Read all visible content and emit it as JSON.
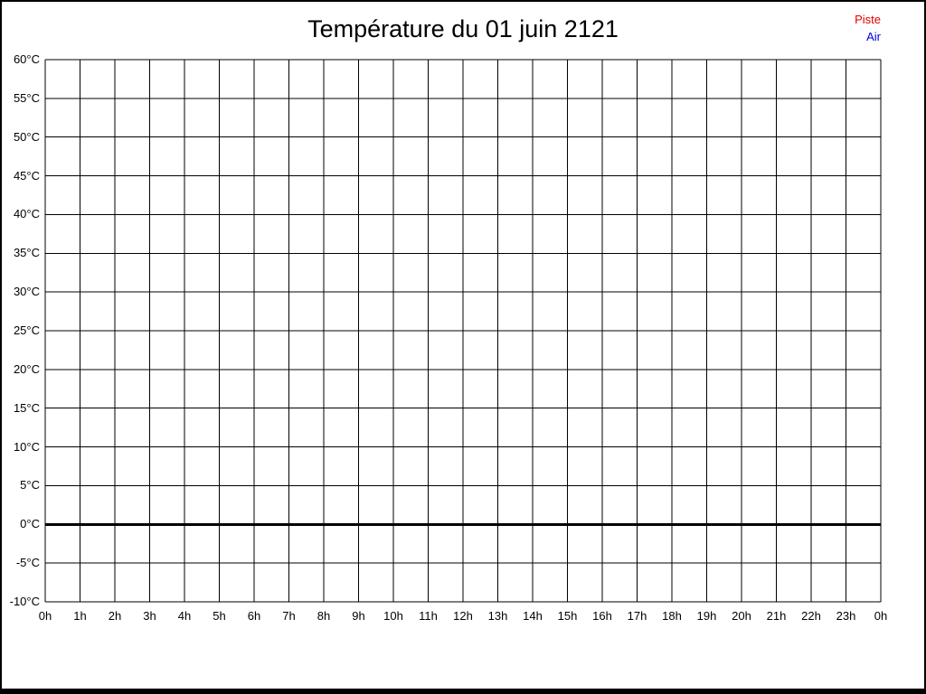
{
  "page": {
    "background": "#ffffff",
    "border_color": "#000000"
  },
  "header": {
    "title": "Température du 01 juin 2121"
  },
  "legend": {
    "position": "top-right",
    "items": [
      {
        "label": "Piste",
        "color": "#e00000"
      },
      {
        "label": "Air",
        "color": "#0000dd"
      }
    ]
  },
  "chart_data": {
    "type": "line",
    "title": "Température du 01 juin 2121",
    "xlabel": "",
    "ylabel": "",
    "x_unit": "h",
    "y_unit": "°C",
    "xlim_hours": [
      0,
      24
    ],
    "ylim": [
      -10,
      60
    ],
    "y_step": 5,
    "x_ticks": [
      "0h",
      "1h",
      "2h",
      "3h",
      "4h",
      "5h",
      "6h",
      "7h",
      "8h",
      "9h",
      "10h",
      "11h",
      "12h",
      "13h",
      "14h",
      "15h",
      "16h",
      "17h",
      "18h",
      "19h",
      "20h",
      "21h",
      "22h",
      "23h",
      "0h"
    ],
    "y_ticks": [
      "60°C",
      "55°C",
      "50°C",
      "45°C",
      "40°C",
      "35°C",
      "30°C",
      "25°C",
      "20°C",
      "15°C",
      "10°C",
      "5°C",
      "0°C",
      "-5°C",
      "-10°C"
    ],
    "grid": true,
    "grid_color": "#000000",
    "zero_line": {
      "value": 0,
      "color": "#000000",
      "thickness": 3
    },
    "series": [
      {
        "name": "Piste",
        "color": "#e00000",
        "values": []
      },
      {
        "name": "Air",
        "color": "#0000dd",
        "values": []
      }
    ]
  }
}
